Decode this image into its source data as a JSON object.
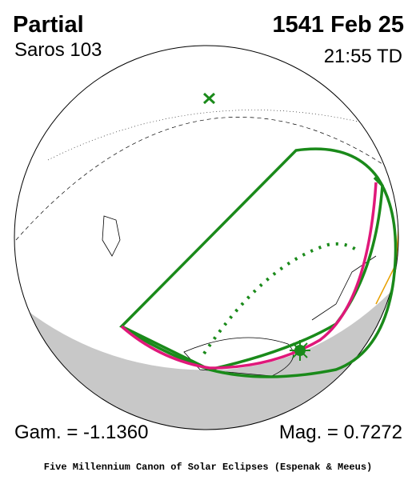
{
  "header": {
    "type": "Partial",
    "saros": "Saros 103",
    "date": "1541 Feb 25",
    "time": "21:55 TD"
  },
  "footer": {
    "gamma": "Gam. = -1.1360",
    "magnitude": "Mag. = 0.7272",
    "credit": "Five Millennium Canon of Solar Eclipses (Espenak & Meeus)"
  }
}
